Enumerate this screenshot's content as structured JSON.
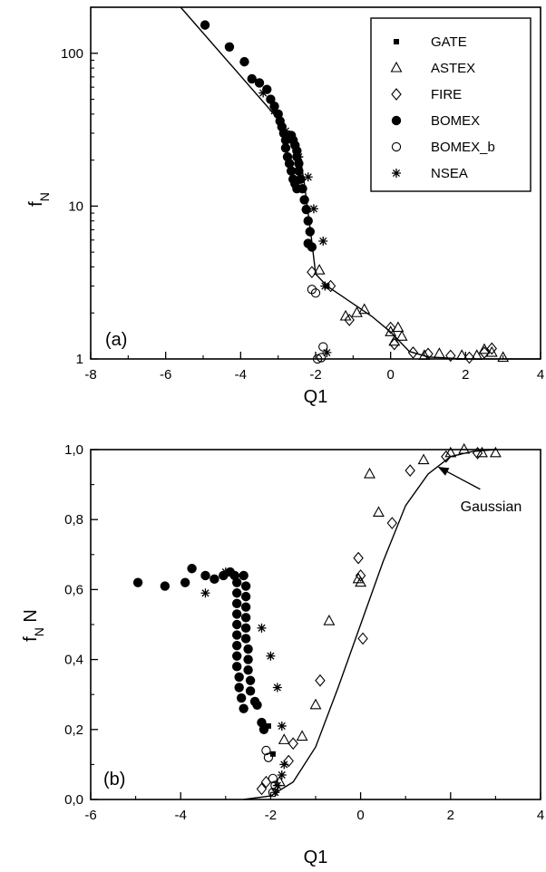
{
  "chart_data": [
    {
      "panel": "(a)",
      "type": "scatter",
      "xlabel": "Q1",
      "ylabel": "f",
      "ylabel_sub": "N",
      "xlim": [
        -8,
        4
      ],
      "ylim": [
        1,
        200
      ],
      "yscale": "log",
      "xticks": [
        -8,
        -6,
        -4,
        -2,
        0,
        2,
        4
      ],
      "xtick_labels": [
        "-8",
        "-6",
        "-4",
        "-2",
        "0",
        "2",
        "4"
      ],
      "yticks": [
        1,
        10,
        100
      ],
      "ytick_labels": [
        "1",
        "10",
        "100"
      ],
      "legend_position": "top-right",
      "series": [
        {
          "name": "GATE",
          "marker": "square-filled",
          "points": [
            [
              -1.7,
              3.0
            ]
          ]
        },
        {
          "name": "ASTEX",
          "marker": "triangle-open",
          "points": [
            [
              -1.9,
              3.8
            ],
            [
              -1.2,
              1.9
            ],
            [
              -0.9,
              2.0
            ],
            [
              -0.7,
              2.1
            ],
            [
              0.0,
              1.5
            ],
            [
              0.1,
              1.3
            ],
            [
              0.2,
              1.6
            ],
            [
              0.3,
              1.4
            ],
            [
              0.9,
              1.05
            ],
            [
              1.3,
              1.08
            ],
            [
              1.9,
              1.05
            ],
            [
              2.3,
              1.05
            ],
            [
              2.5,
              1.15
            ],
            [
              2.7,
              1.1
            ],
            [
              3.0,
              1.02
            ]
          ]
        },
        {
          "name": "FIRE",
          "marker": "diamond-open",
          "points": [
            [
              -2.1,
              3.7
            ],
            [
              -1.6,
              3.0
            ],
            [
              -1.1,
              1.8
            ],
            [
              0.0,
              1.6
            ],
            [
              0.1,
              1.25
            ],
            [
              0.6,
              1.1
            ],
            [
              1.0,
              1.08
            ],
            [
              1.6,
              1.05
            ],
            [
              2.1,
              1.02
            ],
            [
              2.5,
              1.1
            ],
            [
              2.7,
              1.17
            ]
          ]
        },
        {
          "name": "BOMEX",
          "marker": "circle-filled",
          "points": [
            [
              -4.95,
              153
            ],
            [
              -4.3,
              110
            ],
            [
              -3.9,
              88
            ],
            [
              -3.7,
              68
            ],
            [
              -3.5,
              64
            ],
            [
              -3.3,
              58
            ],
            [
              -3.2,
              50
            ],
            [
              -3.1,
              45
            ],
            [
              -3.0,
              40
            ],
            [
              -2.95,
              36
            ],
            [
              -2.9,
              33
            ],
            [
              -2.85,
              30
            ],
            [
              -2.8,
              27
            ],
            [
              -2.8,
              24
            ],
            [
              -2.75,
              21
            ],
            [
              -2.7,
              19
            ],
            [
              -2.65,
              17
            ],
            [
              -2.6,
              15
            ],
            [
              -2.55,
              14
            ],
            [
              -2.5,
              13
            ],
            [
              -2.65,
              29
            ],
            [
              -2.6,
              27
            ],
            [
              -2.55,
              25
            ],
            [
              -2.5,
              23
            ],
            [
              -2.5,
              21
            ],
            [
              -2.45,
              19
            ],
            [
              -2.45,
              17
            ],
            [
              -2.4,
              15
            ],
            [
              -2.35,
              13
            ],
            [
              -2.3,
              11
            ],
            [
              -2.25,
              9.5
            ],
            [
              -2.2,
              8
            ],
            [
              -2.15,
              6.8
            ],
            [
              -2.2,
              5.7
            ],
            [
              -2.1,
              5.4
            ]
          ]
        },
        {
          "name": "BOMEX_b",
          "marker": "circle-open",
          "points": [
            [
              -2.1,
              2.85
            ],
            [
              -2.0,
              2.7
            ],
            [
              -1.8,
              1.2
            ],
            [
              -1.85,
              1.02
            ],
            [
              -1.95,
              1.0
            ]
          ]
        },
        {
          "name": "NSEA",
          "marker": "asterisk",
          "points": [
            [
              -3.4,
              55
            ],
            [
              -3.1,
              42
            ],
            [
              -2.8,
              31
            ],
            [
              -2.45,
              21
            ],
            [
              -2.2,
              15.5
            ],
            [
              -2.05,
              9.6
            ],
            [
              -1.8,
              5.9
            ],
            [
              -1.75,
              3.0
            ],
            [
              -1.7,
              1.1
            ]
          ]
        }
      ],
      "fit_line": [
        [
          -5.6,
          200
        ],
        [
          -2.95,
          36
        ],
        [
          -2.4,
          20
        ],
        [
          -2.3,
          14
        ],
        [
          -2.1,
          5.8
        ],
        [
          -2.0,
          3.6
        ],
        [
          -1.7,
          3.0
        ],
        [
          -0.5,
          1.9
        ],
        [
          0.0,
          1.5
        ],
        [
          0.5,
          1.12
        ],
        [
          1.0,
          1.03
        ],
        [
          2.0,
          1.0
        ],
        [
          4.0,
          1.0
        ]
      ],
      "panel_label": "(a)"
    },
    {
      "panel": "(b)",
      "type": "scatter",
      "xlabel": "Q1",
      "ylabel": "f",
      "ylabel_sub": "N",
      "ylabel_suffix": " N",
      "xlim": [
        -6,
        4
      ],
      "ylim": [
        0.0,
        1.0
      ],
      "xticks": [
        -6,
        -4,
        -2,
        0,
        2,
        4
      ],
      "xtick_labels": [
        "-6",
        "-4",
        "-2",
        "0",
        "2",
        "4"
      ],
      "yticks": [
        0.0,
        0.2,
        0.4,
        0.6,
        0.8,
        1.0
      ],
      "ytick_labels": [
        "0,0",
        "0,2",
        "0,4",
        "0,6",
        "0,8",
        "1,0"
      ],
      "series": [
        {
          "name": "GATE",
          "marker": "square-filled",
          "points": [
            [
              -2.05,
              0.21
            ],
            [
              -1.95,
              0.13
            ]
          ]
        },
        {
          "name": "ASTEX",
          "marker": "triangle-open",
          "points": [
            [
              -1.8,
              0.05
            ],
            [
              -1.7,
              0.17
            ],
            [
              -1.3,
              0.18
            ],
            [
              -1.0,
              0.27
            ],
            [
              -0.7,
              0.51
            ],
            [
              -0.05,
              0.63
            ],
            [
              0.0,
              0.62
            ],
            [
              0.2,
              0.93
            ],
            [
              0.4,
              0.82
            ],
            [
              1.4,
              0.97
            ],
            [
              2.0,
              0.99
            ],
            [
              2.3,
              1.0
            ],
            [
              2.7,
              0.99
            ],
            [
              3.0,
              0.99
            ]
          ]
        },
        {
          "name": "FIRE",
          "marker": "diamond-open",
          "points": [
            [
              -2.2,
              0.03
            ],
            [
              -2.1,
              0.05
            ],
            [
              -1.6,
              0.11
            ],
            [
              -1.5,
              0.16
            ],
            [
              -0.9,
              0.34
            ],
            [
              -0.05,
              0.69
            ],
            [
              0.0,
              0.64
            ],
            [
              0.05,
              0.46
            ],
            [
              0.7,
              0.79
            ],
            [
              1.1,
              0.94
            ],
            [
              1.9,
              0.98
            ],
            [
              2.6,
              0.99
            ]
          ]
        },
        {
          "name": "BOMEX",
          "marker": "circle-filled",
          "points": [
            [
              -4.95,
              0.62
            ],
            [
              -4.35,
              0.61
            ],
            [
              -3.9,
              0.62
            ],
            [
              -3.75,
              0.66
            ],
            [
              -3.45,
              0.64
            ],
            [
              -3.25,
              0.63
            ],
            [
              -3.05,
              0.64
            ],
            [
              -2.9,
              0.65
            ],
            [
              -2.8,
              0.64
            ],
            [
              -2.75,
              0.62
            ],
            [
              -2.75,
              0.59
            ],
            [
              -2.75,
              0.56
            ],
            [
              -2.75,
              0.53
            ],
            [
              -2.75,
              0.5
            ],
            [
              -2.75,
              0.47
            ],
            [
              -2.75,
              0.44
            ],
            [
              -2.75,
              0.41
            ],
            [
              -2.75,
              0.38
            ],
            [
              -2.7,
              0.35
            ],
            [
              -2.7,
              0.32
            ],
            [
              -2.65,
              0.29
            ],
            [
              -2.6,
              0.26
            ],
            [
              -2.6,
              0.64
            ],
            [
              -2.55,
              0.61
            ],
            [
              -2.55,
              0.58
            ],
            [
              -2.55,
              0.55
            ],
            [
              -2.55,
              0.52
            ],
            [
              -2.55,
              0.49
            ],
            [
              -2.55,
              0.46
            ],
            [
              -2.5,
              0.43
            ],
            [
              -2.5,
              0.4
            ],
            [
              -2.5,
              0.37
            ],
            [
              -2.45,
              0.34
            ],
            [
              -2.45,
              0.31
            ],
            [
              -2.35,
              0.28
            ],
            [
              -2.3,
              0.27
            ],
            [
              -2.2,
              0.22
            ],
            [
              -2.15,
              0.2
            ]
          ]
        },
        {
          "name": "BOMEX_b",
          "marker": "circle-open",
          "points": [
            [
              -2.1,
              0.14
            ],
            [
              -2.05,
              0.12
            ],
            [
              -1.95,
              0.06
            ],
            [
              -1.9,
              0.04
            ],
            [
              -1.95,
              0.02
            ]
          ]
        },
        {
          "name": "NSEA",
          "marker": "asterisk",
          "points": [
            [
              -3.45,
              0.59
            ],
            [
              -3.0,
              0.65
            ],
            [
              -2.75,
              0.62
            ],
            [
              -2.2,
              0.49
            ],
            [
              -2.0,
              0.41
            ],
            [
              -1.85,
              0.32
            ],
            [
              -1.75,
              0.21
            ],
            [
              -1.7,
              0.1
            ],
            [
              -1.75,
              0.07
            ],
            [
              -1.85,
              0.04
            ],
            [
              -1.9,
              0.02
            ]
          ]
        }
      ],
      "fit_line": [
        [
          -2.6,
          0.0
        ],
        [
          -2.0,
          0.01
        ],
        [
          -1.5,
          0.05
        ],
        [
          -1.0,
          0.15
        ],
        [
          -0.5,
          0.32
        ],
        [
          0.0,
          0.5
        ],
        [
          0.5,
          0.68
        ],
        [
          1.0,
          0.84
        ],
        [
          1.5,
          0.93
        ],
        [
          2.0,
          0.98
        ],
        [
          2.5,
          0.995
        ],
        [
          3.0,
          1.0
        ]
      ],
      "annotation": {
        "text": "Gaussian",
        "target": [
          1.7,
          0.97
        ],
        "text_at": [
          2.9,
          0.84
        ]
      },
      "panel_label": "(b)"
    }
  ]
}
